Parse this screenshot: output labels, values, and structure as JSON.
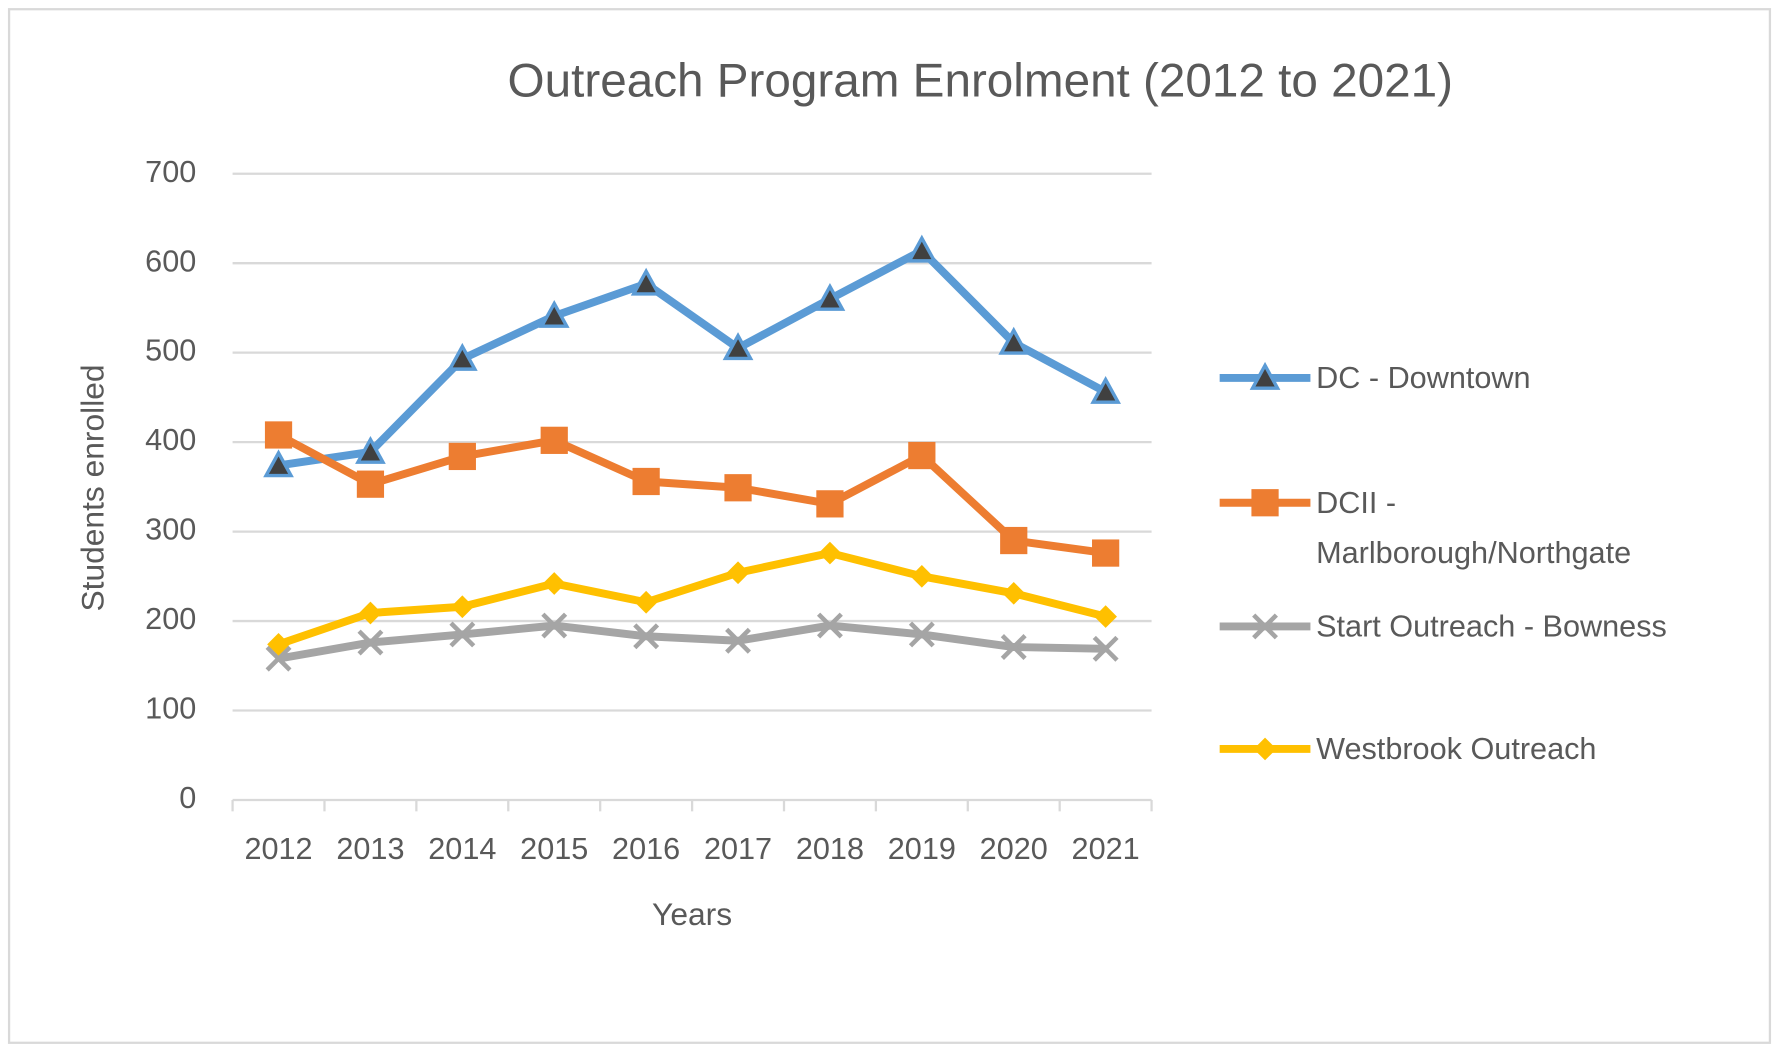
{
  "chart_data": {
    "type": "line",
    "title": "Outreach Program Enrolment (2012 to 2021)",
    "x_label": "Years",
    "y_label": "Students enrolled",
    "categories": [
      "2012",
      "2013",
      "2014",
      "2015",
      "2016",
      "2017",
      "2018",
      "2019",
      "2020",
      "2021"
    ],
    "series": [
      {
        "name": "DC - Downtown",
        "color": "#5b9bd5",
        "marker": "triangle",
        "values": [
          374,
          389,
          493,
          541,
          577,
          505,
          560,
          614,
          511,
          456
        ]
      },
      {
        "name": "DCII - Marlborough/Northgate",
        "color": "#ed7d31",
        "marker": "square",
        "values": [
          408,
          353,
          384,
          402,
          356,
          349,
          331,
          385,
          290,
          276
        ]
      },
      {
        "name": "Start Outreach - Bowness",
        "color": "#a5a5a5",
        "marker": "x",
        "values": [
          158,
          176,
          185,
          195,
          183,
          178,
          195,
          185,
          171,
          169
        ]
      },
      {
        "name": "Westbrook Outreach",
        "color": "#ffc000",
        "marker": "diamond",
        "values": [
          174,
          209,
          216,
          242,
          221,
          254,
          276,
          250,
          231,
          205
        ]
      }
    ],
    "ylim": [
      0,
      700
    ],
    "yticks": [
      0,
      100,
      200,
      300,
      400,
      500,
      600,
      700
    ],
    "grid": true,
    "legend": "right"
  }
}
